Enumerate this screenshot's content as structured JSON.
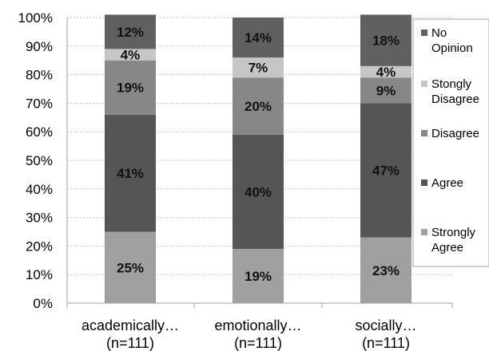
{
  "chart_data": {
    "type": "bar",
    "stacked": true,
    "percent": true,
    "categories": [
      [
        "academically…",
        "(n=111)"
      ],
      [
        "emotionally…",
        "(n=111)"
      ],
      [
        "socially…",
        "(n=111)"
      ]
    ],
    "series": [
      {
        "name": "Strongly Agree",
        "legend_lines": [
          "Strongly",
          "Agree"
        ],
        "values": [
          25,
          19,
          23
        ],
        "labels": [
          "25%",
          "19%",
          "23%"
        ],
        "color": "#a0a0a0"
      },
      {
        "name": "Agree",
        "legend_lines": [
          "Agree"
        ],
        "values": [
          41,
          40,
          47
        ],
        "labels": [
          "41%",
          "40%",
          "47%"
        ],
        "color": "#555555"
      },
      {
        "name": "Disagree",
        "legend_lines": [
          "Disagree"
        ],
        "values": [
          19,
          20,
          9
        ],
        "labels": [
          "19%",
          "20%",
          "9%"
        ],
        "color": "#878787"
      },
      {
        "name": "Stongly Disagree",
        "legend_lines": [
          "Stongly",
          "Disagree"
        ],
        "values": [
          4,
          7,
          4
        ],
        "labels": [
          "4%",
          "7%",
          "4%"
        ],
        "color": "#c6c6c6"
      },
      {
        "name": "No Opinion",
        "legend_lines": [
          "No",
          "Opinion"
        ],
        "values": [
          12,
          14,
          18
        ],
        "labels": [
          "12%",
          "14%",
          "18%"
        ],
        "color": "#606060"
      }
    ],
    "y_ticks": [
      "0%",
      "10%",
      "20%",
      "30%",
      "40%",
      "50%",
      "60%",
      "70%",
      "80%",
      "90%",
      "100%"
    ],
    "ylim": [
      0,
      100
    ],
    "grid": true,
    "legend": "right",
    "legend_order": [
      "No Opinion",
      "Stongly Disagree",
      "Disagree",
      "Agree",
      "Strongly Agree"
    ]
  }
}
